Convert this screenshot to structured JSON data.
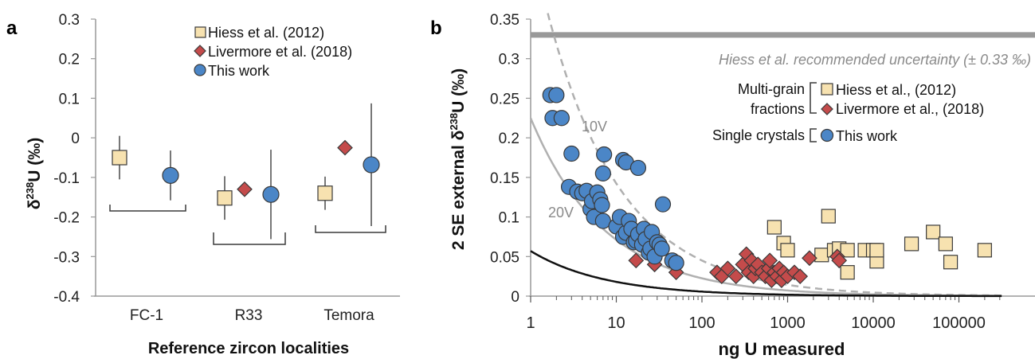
{
  "colors": {
    "hiess": "#f7e2b0",
    "livermore": "#c44b4b",
    "thiswork": "#4b86c7",
    "marker_edge": "#3a3a3a",
    "errorbar": "#777777",
    "curve_grey": "#b0b0b0",
    "band_grey": "#999999"
  },
  "panel_a": {
    "letter": "a",
    "ylabel_main": "δ",
    "ylabel_sup": "238",
    "ylabel_tail": "U (‰)",
    "xlabel": "Reference zircon localities",
    "legend": [
      "Hiess et al. (2012)",
      "Livermore et al. (2018)",
      "This work"
    ]
  },
  "panel_b": {
    "letter": "b",
    "ylabel_main": "2 SE external δ",
    "ylabel_sup": "238",
    "ylabel_tail": "U (‰)",
    "xlabel": "ng U measured",
    "band_label": "Hiess et al. recommended uncertainty (± 0.33 ‰)",
    "curve_labels": [
      "10V",
      "20V"
    ],
    "legend_groups": [
      "Multi-grain",
      "fractions",
      "Single crystals"
    ],
    "legend": [
      "Hiess et al., (2012)",
      "Livermore et al., (2018)",
      "This work"
    ]
  },
  "chart_data": [
    {
      "type": "scatter",
      "categories": [
        "FC-1",
        "R33",
        "Temora"
      ],
      "ylim": [
        -0.4,
        0.3
      ],
      "yticks": [
        "0.3",
        "0.2",
        "0.1",
        "0",
        "-0.1",
        "-0.2",
        "-0.3",
        "-0.4"
      ],
      "series": [
        {
          "name": "Hiess et al. (2012)",
          "marker": "square",
          "points": [
            {
              "cat": "FC-1",
              "y": -0.05,
              "err": 0.055
            },
            {
              "cat": "R33",
              "y": -0.152,
              "err": 0.055
            },
            {
              "cat": "Temora",
              "y": -0.14,
              "err": 0.042
            }
          ]
        },
        {
          "name": "Livermore et al. (2018)",
          "marker": "diamond",
          "points": [
            {
              "cat": "R33",
              "y": -0.13,
              "err": 0
            },
            {
              "cat": "Temora",
              "y": -0.025,
              "err": 0
            }
          ]
        },
        {
          "name": "This work",
          "marker": "circle",
          "points": [
            {
              "cat": "FC-1",
              "y": -0.095,
              "err": 0.063
            },
            {
              "cat": "R33",
              "y": -0.143,
              "err": 0.113
            },
            {
              "cat": "Temora",
              "y": -0.068,
              "err": 0.155
            }
          ]
        }
      ]
    },
    {
      "type": "scatter",
      "xscale": "log",
      "xlim": [
        1,
        300000
      ],
      "ylim": [
        0,
        0.35
      ],
      "xticks": [
        "1",
        "10",
        "100",
        "1000",
        "10000",
        "100000"
      ],
      "yticks": [
        "0.35",
        "0.3",
        "0.25",
        "0.2",
        "0.15",
        "0.1",
        "0.05",
        "0"
      ],
      "reference_band_y": 0.33,
      "series": [
        {
          "name": "Hiess et al., (2012)",
          "marker": "square",
          "x": [
            700,
            900,
            1000,
            2500,
            3000,
            3500,
            4000,
            5000,
            5000,
            8000,
            10000,
            11000,
            11000,
            28000,
            50000,
            70000,
            80000,
            200000
          ],
          "y": [
            0.087,
            0.067,
            0.058,
            0.052,
            0.101,
            0.058,
            0.06,
            0.058,
            0.03,
            0.058,
            0.058,
            0.044,
            0.058,
            0.066,
            0.081,
            0.066,
            0.043,
            0.058
          ]
        },
        {
          "name": "Livermore et al., (2018)",
          "marker": "diamond",
          "x": [
            17,
            28,
            50,
            150,
            170,
            200,
            250,
            300,
            330,
            350,
            380,
            400,
            420,
            450,
            500,
            550,
            600,
            620,
            650,
            700,
            750,
            800,
            850,
            900,
            1000,
            1200,
            1400,
            1800,
            3800,
            4000
          ],
          "y": [
            0.045,
            0.04,
            0.03,
            0.03,
            0.025,
            0.035,
            0.025,
            0.04,
            0.053,
            0.03,
            0.045,
            0.025,
            0.035,
            0.04,
            0.03,
            0.025,
            0.035,
            0.045,
            0.02,
            0.03,
            0.025,
            0.035,
            0.02,
            0.03,
            0.025,
            0.03,
            0.025,
            0.048,
            0.05,
            0.045
          ]
        },
        {
          "name": "This work",
          "marker": "circle",
          "x": [
            1.7,
            2.0,
            1.8,
            2.3,
            3.0,
            2.8,
            3.5,
            4.0,
            4.5,
            5.0,
            5.2,
            5.5,
            6.0,
            6.5,
            7.0,
            7.0,
            7.2,
            6.8,
            12.0,
            13.0,
            18.0,
            10.0,
            11.0,
            12.0,
            13.0,
            14.0,
            15.0,
            16.0,
            17.0,
            18.0,
            20.0,
            21.0,
            22.0,
            24.0,
            25.0,
            26.0,
            28.0,
            30.0,
            32.0,
            35.0,
            34.0,
            45.0,
            50.0
          ],
          "y": [
            0.254,
            0.254,
            0.225,
            0.225,
            0.18,
            0.138,
            0.132,
            0.13,
            0.133,
            0.11,
            0.12,
            0.1,
            0.131,
            0.122,
            0.095,
            0.155,
            0.179,
            0.115,
            0.172,
            0.169,
            0.162,
            0.088,
            0.1,
            0.075,
            0.08,
            0.095,
            0.085,
            0.068,
            0.07,
            0.078,
            0.065,
            0.085,
            0.072,
            0.055,
            0.06,
            0.081,
            0.05,
            0.068,
            0.065,
            0.116,
            0.06,
            0.045,
            0.042
          ]
        }
      ]
    }
  ]
}
